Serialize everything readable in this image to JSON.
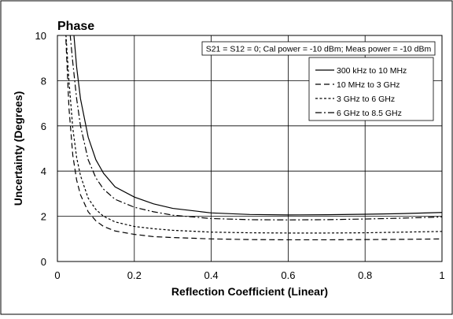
{
  "chart_data": {
    "type": "line",
    "title": "Phase",
    "annotation": "S21 = S12 = 0; Cal power = -10 dBm; Meas power = -10 dBm",
    "xlabel": "Reflection Coefficient (Linear)",
    "ylabel": "Uncertainty (Degrees)",
    "xlim": [
      0,
      1
    ],
    "ylim": [
      0,
      10
    ],
    "xticks": [
      "0",
      "0.2",
      "0.4",
      "0.6",
      "0.8",
      "1"
    ],
    "yticks": [
      "0",
      "2",
      "4",
      "6",
      "8",
      "10"
    ],
    "grid": true,
    "legend_position": "top-right",
    "x": [
      0.02,
      0.03,
      0.04,
      0.05,
      0.06,
      0.08,
      0.1,
      0.12,
      0.15,
      0.2,
      0.25,
      0.3,
      0.4,
      0.5,
      0.6,
      0.7,
      0.8,
      0.9,
      1.0
    ],
    "series": [
      {
        "name": "300 kHz to 10 MHz",
        "dash": "solid",
        "values": [
          null,
          null,
          10.6,
          8.6,
          7.2,
          5.5,
          4.5,
          3.9,
          3.3,
          2.85,
          2.55,
          2.35,
          2.15,
          2.08,
          2.06,
          2.07,
          2.09,
          2.12,
          2.17
        ]
      },
      {
        "name": "10 MHz to 3 GHz",
        "dash": "long-dash",
        "values": [
          10.6,
          6.8,
          4.7,
          3.6,
          2.95,
          2.2,
          1.8,
          1.55,
          1.35,
          1.2,
          1.1,
          1.06,
          1.0,
          0.97,
          0.96,
          0.96,
          0.97,
          0.98,
          1.0
        ]
      },
      {
        "name": "3 GHz to 6 GHz",
        "dash": "short-dash",
        "values": [
          10.6,
          8.0,
          5.9,
          4.6,
          3.8,
          2.8,
          2.3,
          2.0,
          1.75,
          1.55,
          1.45,
          1.38,
          1.3,
          1.27,
          1.26,
          1.26,
          1.27,
          1.3,
          1.33
        ]
      },
      {
        "name": "6 GHz to 8.5 GHz",
        "dash": "dash-dot",
        "values": [
          null,
          10.6,
          8.8,
          7.2,
          6.0,
          4.5,
          3.7,
          3.2,
          2.75,
          2.4,
          2.2,
          2.05,
          1.9,
          1.85,
          1.84,
          1.85,
          1.88,
          1.92,
          1.97
        ]
      }
    ]
  }
}
